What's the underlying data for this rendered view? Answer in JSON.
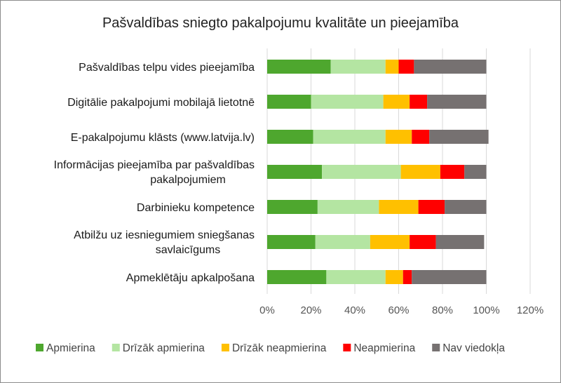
{
  "chart_data": {
    "type": "bar",
    "orientation": "horizontal",
    "stacked": true,
    "title": "Pašvaldības sniegto pakalpojumu kvalitāte un pieejamība",
    "categories": [
      [
        "Pašvaldības telpu vides pieejamība"
      ],
      [
        "Digitālie pakalpojumi mobilajā lietotnē"
      ],
      [
        "E-pakalpojumu klāsts (www.latvija.lv)"
      ],
      [
        "Informācijas pieejamība par pašvaldības",
        "pakalpojumiem"
      ],
      [
        "Darbinieku kompetence"
      ],
      [
        "Atbilžu uz iesniegumiem sniegšanas",
        "savlaicīgums"
      ],
      [
        "Apmeklētāju apkalpošana"
      ]
    ],
    "series": [
      {
        "name": "Apmierina",
        "color": "#4ea72e",
        "values": [
          29,
          20,
          21,
          25,
          23,
          22,
          27
        ]
      },
      {
        "name": "Drīzāk apmierina",
        "color": "#b4e5a2",
        "values": [
          25,
          33,
          33,
          36,
          28,
          25,
          27
        ]
      },
      {
        "name": "Drīzāk neapmierina",
        "color": "#ffc000",
        "values": [
          6,
          12,
          12,
          18,
          18,
          18,
          8
        ]
      },
      {
        "name": "Neapmierina",
        "color": "#ff0000",
        "values": [
          7,
          8,
          8,
          11,
          12,
          12,
          4
        ]
      },
      {
        "name": "Nav viedokļa",
        "color": "#767171",
        "values": [
          33,
          27,
          27,
          10,
          19,
          22,
          34
        ]
      }
    ],
    "xlim": [
      0,
      120
    ],
    "xticks": [
      0,
      20,
      40,
      60,
      80,
      100,
      120
    ],
    "tick_suffix": "%",
    "grid": true,
    "legend_position": "bottom"
  }
}
